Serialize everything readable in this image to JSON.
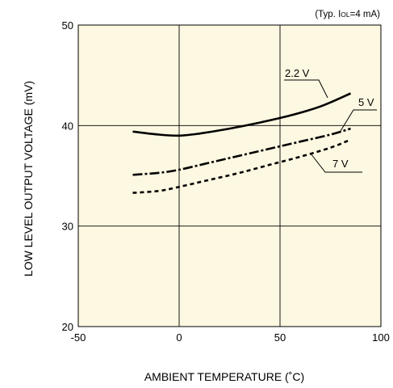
{
  "chart_data": {
    "type": "line",
    "title": "",
    "xlabel": "AMBIENT TEMPERATURE (˚C)",
    "ylabel": "LOW LEVEL OUTPUT VOLTAGE (mV)",
    "xlim": [
      -50,
      100
    ],
    "ylim": [
      20,
      50
    ],
    "xticks": [
      "-50",
      "0",
      "50",
      "100"
    ],
    "yticks": [
      "20",
      "30",
      "40",
      "50"
    ],
    "grid": true,
    "background_color": "#fdf8e1",
    "annotation": {
      "prefix": "(Typ. I",
      "subscript": "OL",
      "suffix": "=4 mA)"
    },
    "series": [
      {
        "name": "2.2 V",
        "style": "solid",
        "x": [
          -23,
          -10,
          0,
          10,
          25,
          40,
          55,
          70,
          85
        ],
        "y": [
          39.4,
          39.1,
          39.0,
          39.2,
          39.7,
          40.3,
          41.0,
          41.9,
          43.2
        ]
      },
      {
        "name": "5 V",
        "style": "dashdot",
        "x": [
          -23,
          -10,
          0,
          15,
          30,
          45,
          60,
          75,
          85
        ],
        "y": [
          35.1,
          35.3,
          35.6,
          36.3,
          37.0,
          37.7,
          38.4,
          39.1,
          39.7
        ]
      },
      {
        "name": "7 V",
        "style": "dashed",
        "x": [
          -23,
          -10,
          0,
          15,
          30,
          45,
          60,
          75,
          85
        ],
        "y": [
          33.3,
          33.5,
          33.9,
          34.6,
          35.3,
          36.1,
          36.9,
          37.8,
          38.6
        ]
      }
    ]
  }
}
